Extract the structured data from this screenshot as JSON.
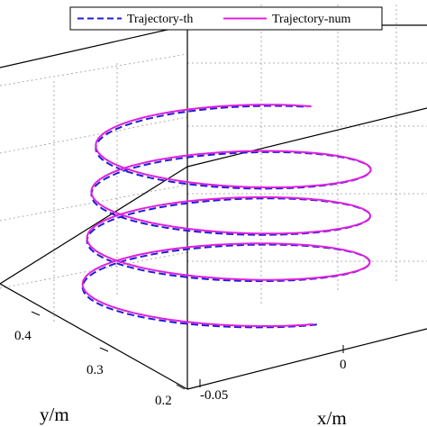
{
  "chart_data": {
    "type": "line",
    "title": "",
    "xlabel": "x/m",
    "ylabel": "y/m",
    "zlabel": "",
    "x_ticks": [
      "-0.05",
      "0"
    ],
    "y_ticks": [
      "0.2",
      "0.3",
      "0.4"
    ],
    "xlim": [
      -0.05,
      0.05
    ],
    "ylim": [
      0.2,
      0.45
    ],
    "grid": true,
    "legend_position": "top",
    "helix": {
      "turns": 3.7,
      "x_center": -0.005,
      "y_center": 0.32
    },
    "series": [
      {
        "name": "Trajectory-th",
        "color": "#1f1fd0",
        "style": "dashed"
      },
      {
        "name": "Trajectory-num",
        "color": "#e020e0",
        "style": "solid"
      }
    ]
  }
}
